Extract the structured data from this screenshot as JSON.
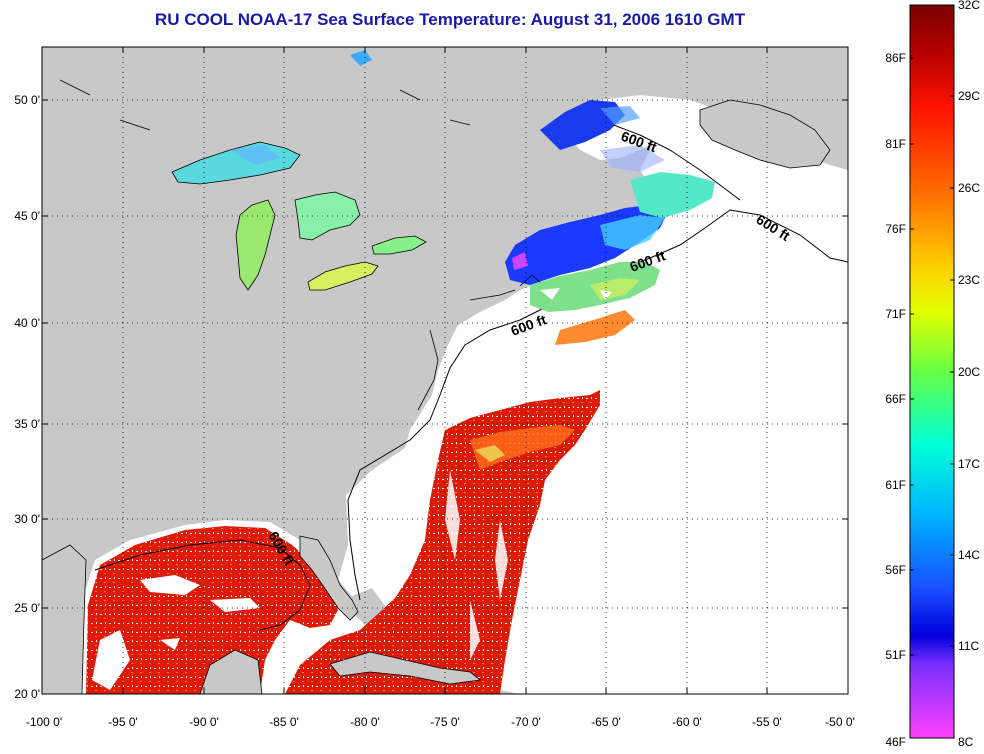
{
  "title": "RU COOL  NOAA-17  Sea Surface Temperature:  August 31, 2006 1610 GMT",
  "latitude_labels": [
    "50 0'",
    "45 0'",
    "40 0'",
    "35 0'",
    "30 0'",
    "25 0'",
    "20 0'"
  ],
  "longitude_labels": [
    "-100 0'",
    "-95 0'",
    "-90 0'",
    "-85 0'",
    "-80 0'",
    "-75 0'",
    "-70 0'",
    "-65 0'",
    "-60 0'",
    "-55 0'",
    "-50 0'"
  ],
  "isobath_labels": [
    "600 ft",
    "600 ft",
    "600 ft",
    "600 ft",
    "600 ft"
  ],
  "colorbar": {
    "celsius_labels": [
      "32C",
      "29C",
      "26C",
      "23C",
      "20C",
      "17C",
      "14C",
      "11C",
      "8C"
    ],
    "fahrenheit_labels": [
      "86F",
      "81F",
      "76F",
      "71F",
      "66F",
      "61F",
      "56F",
      "51F",
      "46F"
    ],
    "stops": [
      "#7a0000",
      "#d80000",
      "#ff1a00",
      "#ff7a00",
      "#ffd000",
      "#d4ff00",
      "#44ff66",
      "#00ffd8",
      "#00c8ff",
      "#1a6aff",
      "#0000e0",
      "#9a3aff",
      "#ff40ff"
    ]
  },
  "colors": {
    "land": "#c8c8c8",
    "ocean_no_data": "#ffffff",
    "coast": "#000000",
    "grid": "#000000",
    "title": "#1a1aaa"
  }
}
